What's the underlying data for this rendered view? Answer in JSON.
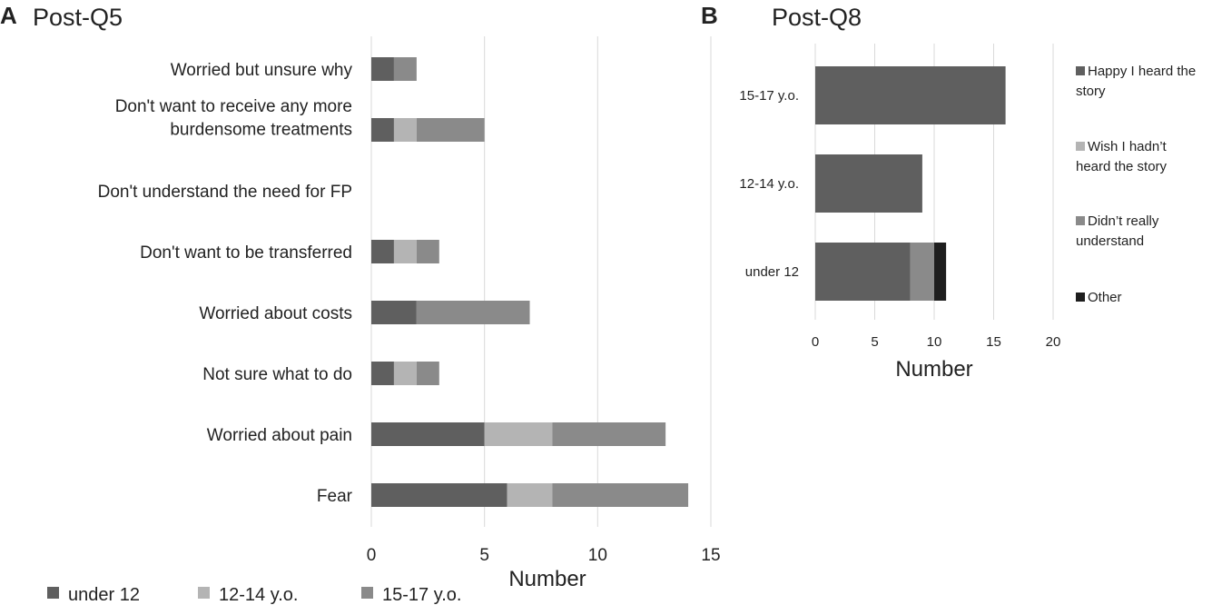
{
  "colors": {
    "under12": "#5f5f5f",
    "y12_14": "#b4b4b4",
    "y15_17": "#8a8a8a",
    "other": "#1e1e1e",
    "grid": "#d9d9d9",
    "text": "#222222"
  },
  "chart_data": [
    {
      "panel_letter": "A",
      "title": "Post-Q5",
      "type": "bar",
      "orientation": "horizontal",
      "stacked": true,
      "categories": [
        "Worried but unsure why",
        "Don't want to receive any more burdensome treatments",
        "Don't understand the need for FP",
        "Don't want to be transferred",
        "Worried about costs",
        "Not sure what to do",
        "Worried about pain",
        "Fear"
      ],
      "series": [
        {
          "name": "under 12",
          "color_key": "under12",
          "values": [
            1,
            1,
            0,
            1,
            2,
            1,
            5,
            6
          ]
        },
        {
          "name": "12-14 y.o.",
          "color_key": "y12_14",
          "values": [
            0,
            1,
            0,
            1,
            0,
            1,
            3,
            2
          ]
        },
        {
          "name": "15-17 y.o.",
          "color_key": "y15_17",
          "values": [
            1,
            3,
            0,
            1,
            5,
            1,
            5,
            6
          ]
        }
      ],
      "xlabel": "Number",
      "xlim": [
        0,
        15
      ],
      "xticks": [
        "0",
        "5",
        "10",
        "15"
      ],
      "grid": true,
      "legend_position": "bottom"
    },
    {
      "panel_letter": "B",
      "title": "Post-Q8",
      "type": "bar",
      "orientation": "horizontal",
      "stacked": true,
      "categories": [
        "15-17 y.o.",
        "12-14 y.o.",
        "under 12"
      ],
      "series": [
        {
          "name": "Happy I heard the story",
          "color_key": "under12",
          "values": [
            16,
            9,
            8
          ]
        },
        {
          "name": "Wish I hadn’t heard the story",
          "color_key": "y12_14",
          "values": [
            0,
            0,
            0
          ]
        },
        {
          "name": "Didn’t really understand",
          "color_key": "y15_17",
          "values": [
            0,
            0,
            2
          ]
        },
        {
          "name": "Other",
          "color_key": "other",
          "values": [
            0,
            0,
            1
          ]
        }
      ],
      "xlabel": "Number",
      "xlim": [
        0,
        20
      ],
      "xticks": [
        "0",
        "5",
        "10",
        "15",
        "20"
      ],
      "grid": true,
      "legend_position": "right"
    }
  ]
}
